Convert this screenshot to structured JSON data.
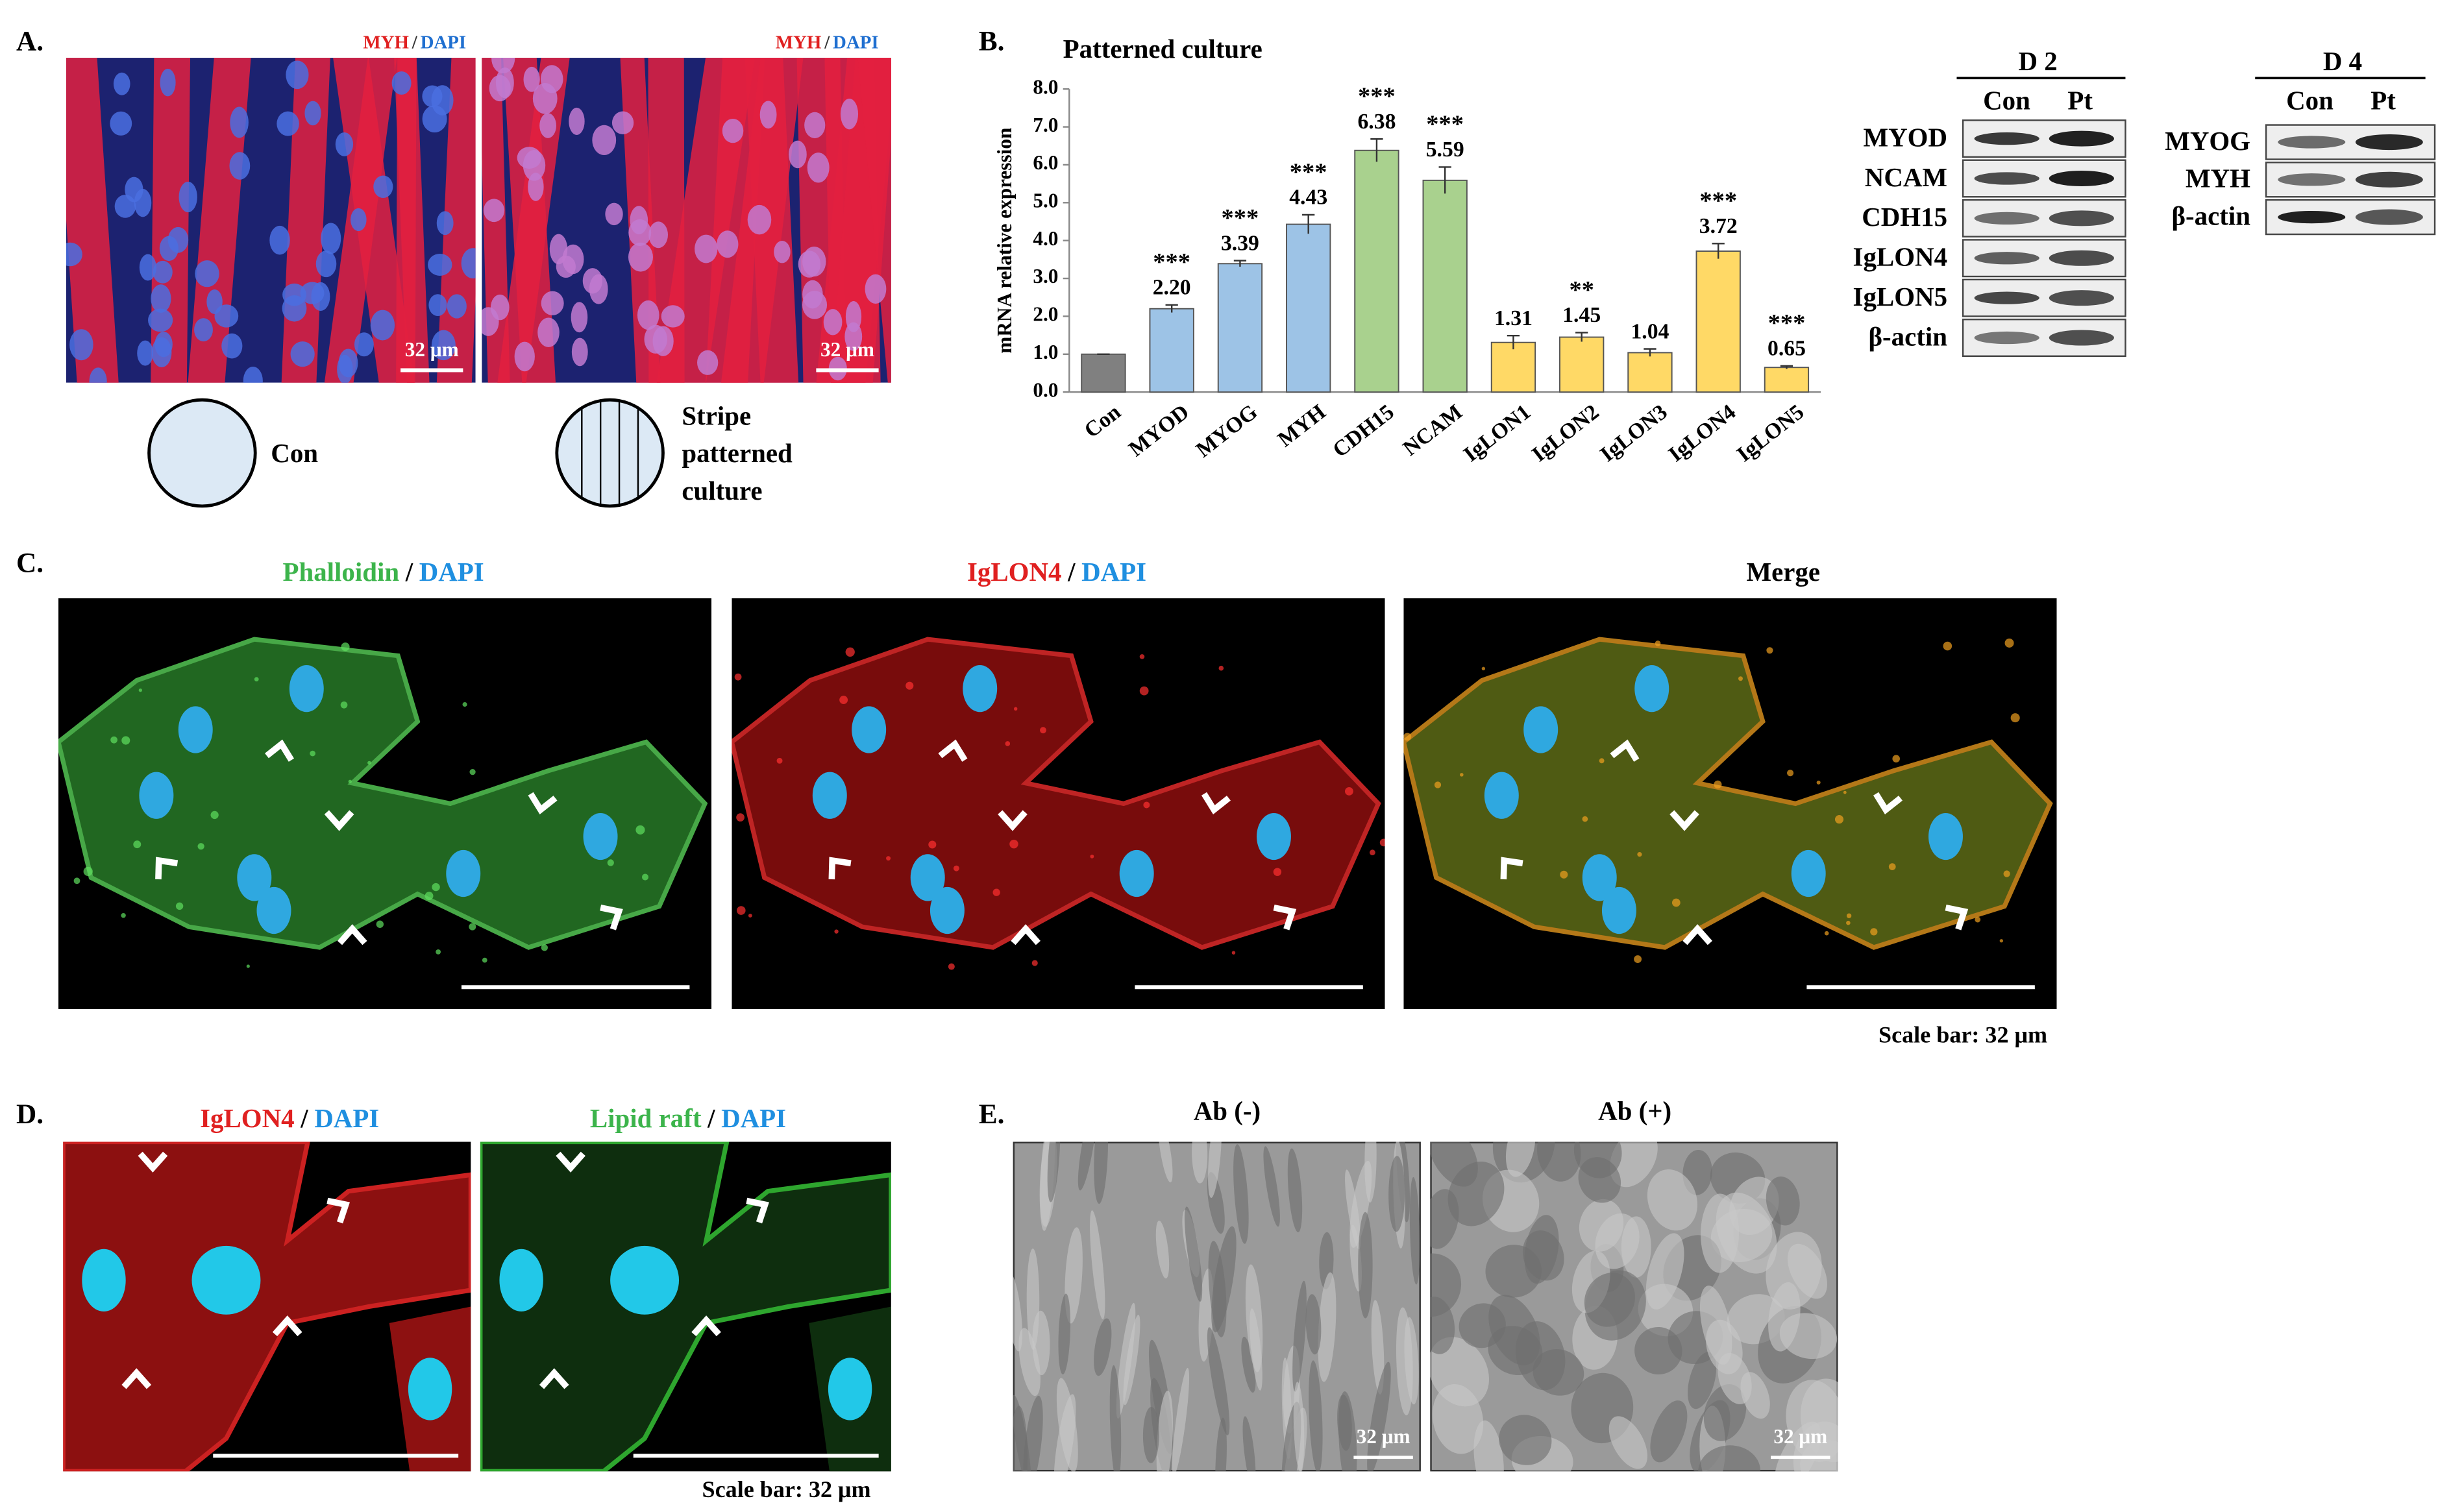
{
  "panels": {
    "a": {
      "label": "A.",
      "images": [
        {
          "stain": [
            "MYH",
            "/",
            "DAPI"
          ],
          "scale": "32 μm"
        },
        {
          "stain": [
            "MYH",
            "/",
            "DAPI"
          ],
          "scale": "32 μm"
        }
      ],
      "legend": [
        [
          "Con"
        ],
        [
          "Stripe",
          "patterned",
          "culture"
        ]
      ]
    },
    "b": {
      "label": "B.",
      "blots": [
        {
          "title": "D 2",
          "columns": [
            "Con",
            "Pt"
          ],
          "rows": [
            "MYOD",
            "NCAM",
            "CDH15",
            "IgLON4",
            "IgLON5",
            "β-actin"
          ]
        },
        {
          "title": "D 4",
          "columns": [
            "Con",
            "Pt"
          ],
          "rows": [
            "MYOG",
            "MYH",
            "β-actin"
          ]
        }
      ]
    },
    "c": {
      "label": "C.",
      "headers": [
        [
          "Phalloidin",
          "/",
          "DAPI"
        ],
        [
          "IgLON4",
          "/",
          "DAPI"
        ],
        [
          "Merge"
        ]
      ],
      "scale": "Scale bar: 32 μm"
    },
    "d": {
      "label": "D.",
      "headers": [
        [
          "IgLON4",
          "/",
          "DAPI"
        ],
        [
          "Lipid raft",
          "/",
          "DAPI"
        ]
      ],
      "scale": "Scale bar: 32 μm"
    },
    "e": {
      "label": "E.",
      "headers": [
        "Ab (-)",
        "Ab (+)"
      ],
      "scales": [
        "32 μm",
        "32 μm"
      ]
    }
  },
  "chart_data": {
    "type": "bar",
    "title": "Patterned culture",
    "y_label": "mRNA relative expression",
    "categories": [
      "Con",
      "MYOD",
      "MYOG",
      "MYH",
      "CDH15",
      "NCAM",
      "IgLON1",
      "IgLON2",
      "IgLON3",
      "IgLON4",
      "IgLON5"
    ],
    "values": [
      1.0,
      2.2,
      3.39,
      4.43,
      6.38,
      5.59,
      1.31,
      1.45,
      1.04,
      3.72,
      0.65
    ],
    "value_labels": [
      null,
      "2.20",
      "3.39",
      "4.43",
      "6.38",
      "5.59",
      "1.31",
      "1.45",
      "1.04",
      "3.72",
      "0.65"
    ],
    "errors": [
      0,
      0.1,
      0.08,
      0.25,
      0.3,
      0.35,
      0.18,
      0.12,
      0.1,
      0.2,
      0.04
    ],
    "annotations": [
      null,
      "***",
      "***",
      "***",
      "***",
      "***",
      null,
      "**",
      null,
      "***",
      "***"
    ],
    "colors": [
      "#808080",
      "#9dc3e6",
      "#9dc3e6",
      "#9dc3e6",
      "#a9d18e",
      "#a9d18e",
      "#ffd966",
      "#ffd966",
      "#ffd966",
      "#ffd966",
      "#ffd966"
    ],
    "ylim": [
      0,
      8
    ],
    "yticks": [
      {
        "value": 0,
        "label": "0.0"
      },
      {
        "value": 1,
        "label": "1.0"
      },
      {
        "value": 2,
        "label": "2.0"
      },
      {
        "value": 3,
        "label": "3.0"
      },
      {
        "value": 4,
        "label": "4.0"
      },
      {
        "value": 5,
        "label": "5.0"
      },
      {
        "value": 6,
        "label": "6.0"
      },
      {
        "value": 7,
        "label": "7.0"
      },
      {
        "value": 8,
        "label": "8.0"
      }
    ]
  }
}
